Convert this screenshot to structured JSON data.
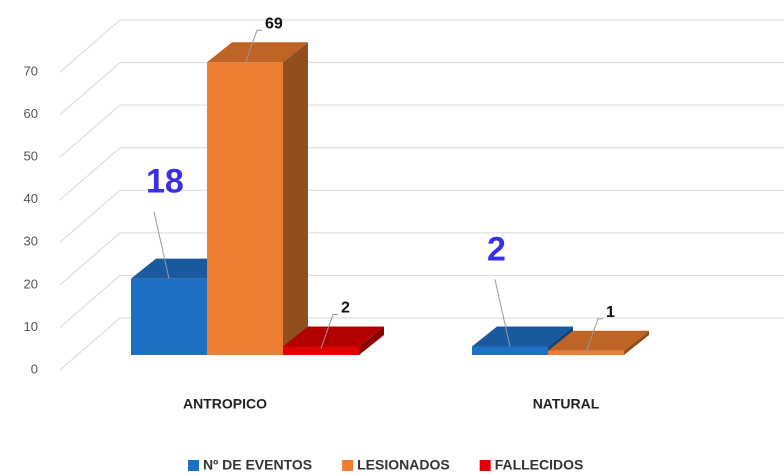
{
  "chart_data": {
    "type": "bar3d",
    "categories": [
      "ANTROPICO",
      "NATURAL"
    ],
    "series": [
      {
        "name": "Nº DE EVENTOS",
        "color": "#1f6fc4",
        "values": [
          18,
          2
        ]
      },
      {
        "name": "LESIONADOS",
        "color": "#ed7d31",
        "values": [
          69,
          1
        ]
      },
      {
        "name": "FALLECIDOS",
        "color": "#e00000",
        "values": [
          2,
          null
        ]
      }
    ],
    "ylim": [
      0,
      70
    ],
    "yticks": [
      0,
      10,
      20,
      30,
      40,
      50,
      60,
      70
    ],
    "grid": true,
    "legend": "bottom"
  }
}
